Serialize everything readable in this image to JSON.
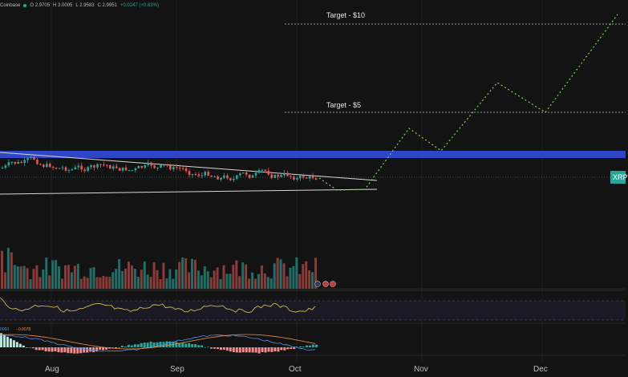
{
  "header": {
    "exchange": "Coinbase",
    "open": "O 2.9705",
    "high": "H 3.0005",
    "low": "L 2.9583",
    "close": "C 2.9951",
    "change": "+0.0247 (+0.83%)"
  },
  "price_tag": {
    "label": "XRP"
  },
  "targets": {
    "ten": "Target - $10",
    "five": "Target - $5"
  },
  "macd": {
    "val1": "0060",
    "val2": "−0.0078"
  },
  "months": [
    "Aug",
    "Sep",
    "Oct",
    "Nov",
    "Dec"
  ],
  "colors": {
    "background": "#131313",
    "up": "#26a69a",
    "down": "#ef5350",
    "resistance_band": "#2f45c8",
    "projection": "#7bd35a",
    "rsi": "#d4b84a"
  }
}
